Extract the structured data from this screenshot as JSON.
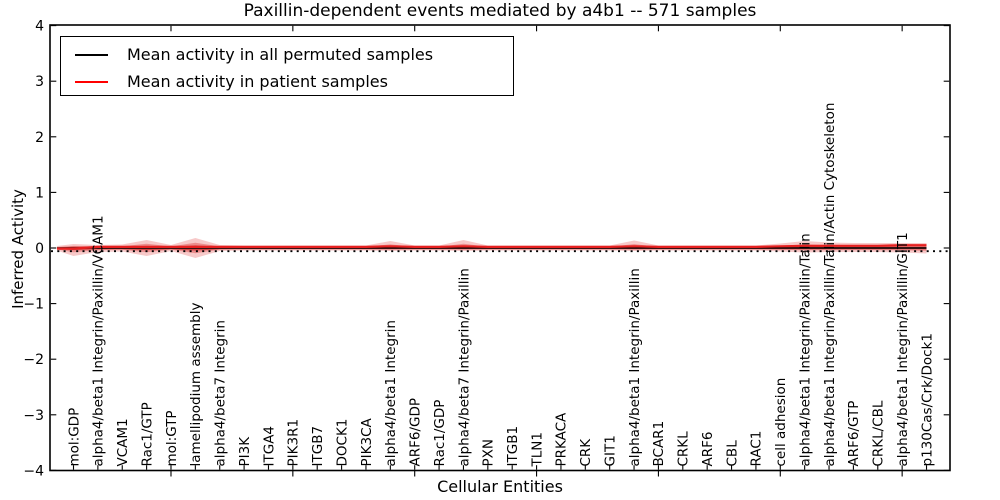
{
  "figure": {
    "title": "Paxillin-dependent events mediated by a4b1 -- 571 samples"
  },
  "legend": {
    "position": "upper left",
    "items": [
      {
        "label": "Mean activity in all permuted samples",
        "color": "#000000"
      },
      {
        "label": "Mean activity in patient samples",
        "color": "#ff0000"
      }
    ]
  },
  "chart_data": {
    "type": "line",
    "title": "Paxillin-dependent events mediated by a4b1 -- 571 samples",
    "xlabel": "Cellular Entities",
    "ylabel": "Inferred Activity",
    "ylim": [
      -4,
      4
    ],
    "yticks": [
      "4",
      "3",
      "2",
      "1",
      "0",
      "−1",
      "−2",
      "−3",
      "−4"
    ],
    "grid": false,
    "legend_position": "upper left",
    "categories": [
      "mol:GDP",
      "alpha4/beta1 Integrin/Paxillin/VCAM1",
      "VCAM1",
      "Rac1/GTP",
      "mol:GTP",
      "lamellipodium assembly",
      "alpha4/beta7 Integrin",
      "PI3K",
      "ITGA4",
      "PIK3R1",
      "ITGB7",
      "DOCK1",
      "PIK3CA",
      "alpha4/beta1 Integrin",
      "ARF6/GDP",
      "Rac1/GDP",
      "alpha4/beta7 Integrin/Paxillin",
      "PXN",
      "ITGB1",
      "TLN1",
      "PRKACA",
      "CRK",
      "GIT1",
      "alpha4/beta1 Integrin/Paxillin",
      "BCAR1",
      "CRKL",
      "ARF6",
      "CBL",
      "RAC1",
      "cell adhesion",
      "alpha4/beta1 Integrin/Paxillin/Talin",
      "alpha4/beta1 Integrin/Paxillin/Talin/Actin Cytoskeleton",
      "ARF6/GTP",
      "CRKL/CBL",
      "alpha4/beta1 Integrin/Paxillin/GIT1",
      "p130Cas/Crk/Dock1"
    ],
    "series": [
      {
        "name": "Mean activity in all permuted samples",
        "color": "#000000",
        "style": "solid",
        "values": [
          0,
          0,
          0,
          0,
          0,
          0,
          0,
          0,
          0,
          0,
          0,
          0,
          0,
          0,
          0,
          0,
          0,
          0,
          0,
          0,
          0,
          0,
          0,
          0,
          0,
          0,
          0,
          0,
          0,
          0,
          0,
          0,
          0,
          0,
          0,
          0
        ]
      },
      {
        "name": "Mean activity in patient samples",
        "color": "#ff0000",
        "style": "solid",
        "values": [
          -0.01,
          0.02,
          0.02,
          0.02,
          0.02,
          0.02,
          0.02,
          0.02,
          0.02,
          0.02,
          0.02,
          0.02,
          0.02,
          0.03,
          0.02,
          0.02,
          0.03,
          0.02,
          0.02,
          0.02,
          0.02,
          0.02,
          0.02,
          0.03,
          0.02,
          0.02,
          0.02,
          0.02,
          0.02,
          0.03,
          0.04,
          0.04,
          0.04,
          0.04,
          0.05,
          0.05
        ]
      }
    ],
    "zero_reference_line": {
      "y": 0,
      "style": "dotted",
      "color": "#000000"
    },
    "band": {
      "meaning": "shaded spread of patient-sample activity around the mean",
      "color": "#dd3333",
      "upper": [
        0.072,
        0.054,
        0.063,
        0.144,
        0.054,
        0.18,
        0.054,
        0.045,
        0.045,
        0.045,
        0.045,
        0.045,
        0.045,
        0.126,
        0.045,
        0.045,
        0.144,
        0.045,
        0.045,
        0.045,
        0.045,
        0.045,
        0.045,
        0.135,
        0.045,
        0.045,
        0.045,
        0.045,
        0.045,
        0.081,
        0.126,
        0.099,
        0.09,
        0.09,
        0.09,
        0.09
      ],
      "lower": [
        0.144,
        0.072,
        0.063,
        0.144,
        0.054,
        0.18,
        0.054,
        0.045,
        0.045,
        0.045,
        0.045,
        0.045,
        0.045,
        0.054,
        0.045,
        0.045,
        0.054,
        0.045,
        0.045,
        0.045,
        0.045,
        0.045,
        0.045,
        0.054,
        0.045,
        0.045,
        0.045,
        0.045,
        0.045,
        0.063,
        0.081,
        0.072,
        0.072,
        0.072,
        0.081,
        0.099
      ]
    }
  }
}
